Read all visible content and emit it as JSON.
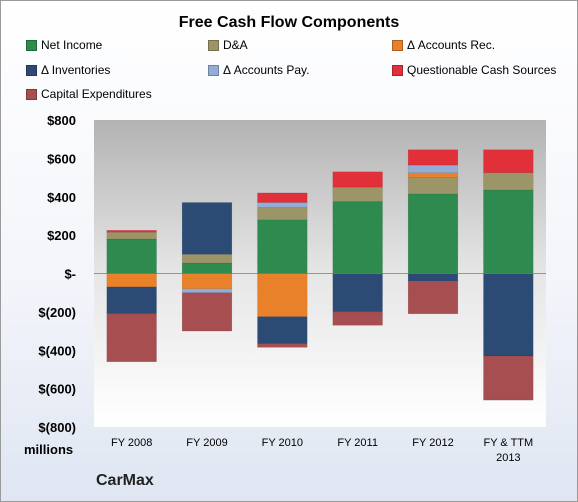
{
  "chart_data": {
    "type": "bar",
    "stacked": true,
    "title": "Free Cash Flow Components",
    "categories": [
      "FY 2008",
      "FY 2009",
      "FY 2010",
      "FY 2011",
      "FY 2012",
      "FY & TTM 2013"
    ],
    "ylim": [
      -800,
      800
    ],
    "yticks": [
      -800,
      -600,
      -400,
      -200,
      0,
      200,
      400,
      600,
      800
    ],
    "ytick_labels": [
      "$(800)",
      "$(600)",
      "$(400)",
      "$(200)",
      "$-",
      "$200",
      "$400",
      "$600",
      "$800"
    ],
    "units_label": "millions",
    "grid": false,
    "legend_position": "top",
    "series": [
      {
        "name": "Net Income",
        "color": "#2E8A4E",
        "values": [
          180,
          55,
          280,
          375,
          415,
          435
        ]
      },
      {
        "name": "D&A",
        "color": "#9C9568",
        "values": [
          35,
          45,
          65,
          75,
          85,
          90
        ]
      },
      {
        "name": "Δ Accounts Rec.",
        "color": "#E8812A",
        "values": [
          -70,
          -80,
          -225,
          0,
          25,
          0
        ]
      },
      {
        "name": "Δ Inventories",
        "color": "#2C4B74",
        "values": [
          -140,
          270,
          -140,
          -200,
          -40,
          -430
        ]
      },
      {
        "name": "Δ Accounts Pay.",
        "color": "#93ADD6",
        "values": [
          0,
          -20,
          25,
          0,
          40,
          0
        ]
      },
      {
        "name": "Questionable Cash Sources",
        "color": "#E1303A",
        "values": [
          10,
          0,
          50,
          80,
          80,
          120
        ]
      },
      {
        "name": "Capital Expenditures",
        "color": "#A64E50",
        "values": [
          -250,
          -200,
          -20,
          -70,
          -170,
          -230
        ]
      }
    ]
  },
  "company": "CarMax"
}
